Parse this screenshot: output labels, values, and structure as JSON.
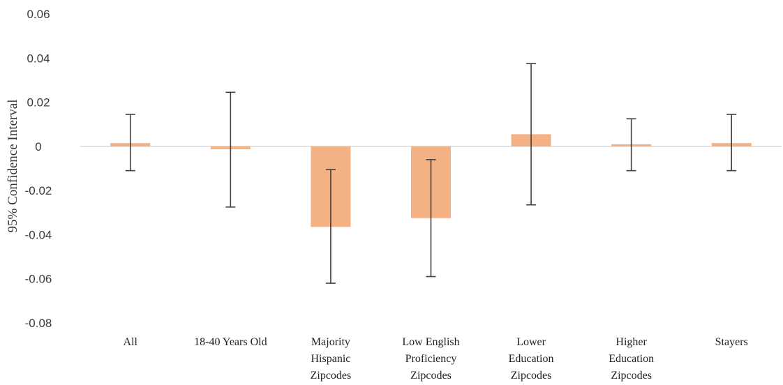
{
  "chart_data": {
    "type": "bar",
    "title": "",
    "xlabel": "",
    "ylabel": "95% Confidence Interval",
    "ylim": [
      -0.08,
      0.06
    ],
    "yticks": [
      0.06,
      0.04,
      0.02,
      0,
      -0.02,
      -0.04,
      -0.06,
      -0.08
    ],
    "ytick_labels": [
      "0.06",
      "0.04",
      "0.02",
      "0",
      "-0.02",
      "-0.04",
      "-0.06",
      "-0.08"
    ],
    "grid": false,
    "legend": "none",
    "categories": [
      [
        "All"
      ],
      [
        "18-40 Years Old"
      ],
      [
        "Majority",
        "Hispanic",
        "Zipcodes"
      ],
      [
        "Low English",
        "Proficiency",
        "Zipcodes"
      ],
      [
        "Lower",
        "Education",
        "Zipcodes"
      ],
      [
        "Higher",
        "Education",
        "Zipcodes"
      ],
      [
        "Stayers"
      ]
    ],
    "values": [
      0.0015,
      -0.0013,
      -0.0365,
      -0.0325,
      0.0055,
      0.0008,
      0.0015
    ],
    "error_low": [
      -0.011,
      -0.0275,
      -0.062,
      -0.059,
      -0.0265,
      -0.011,
      -0.011
    ],
    "error_high": [
      0.0145,
      0.0245,
      -0.0105,
      -0.006,
      0.0375,
      0.0125,
      0.0145
    ],
    "colors": {
      "bar": "#F4B183",
      "error_bar": "#404040",
      "zero_line": "#D9D9D9"
    }
  }
}
